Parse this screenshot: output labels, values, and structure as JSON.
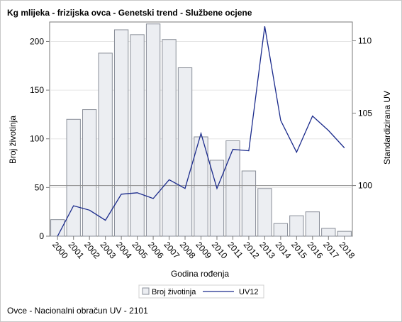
{
  "chart_data": {
    "type": "bar",
    "title": "Kg mlijeka - frizijska ovca - Genetski trend - Službene ocjene",
    "xlabel": "Godina rođenja",
    "ylabel": "Broj životinja",
    "y2label": "Standardizirana UV",
    "footnote": "Ovce - Nacionalni obračun UV - 2101",
    "categories": [
      "2000",
      "2001",
      "2002",
      "2003",
      "2004",
      "2005",
      "2006",
      "2007",
      "2008",
      "2009",
      "2010",
      "2011",
      "2012",
      "2013",
      "2014",
      "2015",
      "2016",
      "2017",
      "2018"
    ],
    "ylim": [
      0,
      220
    ],
    "y_ticks": [
      "0",
      "50",
      "100",
      "150",
      "200"
    ],
    "y_tick_values": [
      0,
      50,
      100,
      150,
      200
    ],
    "y2lim": [
      96.5,
      111.3
    ],
    "y2_ticks": [
      "100",
      "105",
      "110"
    ],
    "y2_tick_values": [
      100,
      105,
      110
    ],
    "reference_line_y2": 100,
    "legend_position": "bottom",
    "series": [
      {
        "name": "Broj životinja",
        "type": "bar",
        "axis": "left",
        "color": "#eceef2",
        "stroke": "#8a8f99",
        "values": [
          null,
          120,
          130,
          188,
          212,
          207,
          218,
          202,
          173,
          102,
          78,
          98,
          67,
          49,
          13,
          21,
          25,
          8,
          5
        ]
      },
      {
        "name": "UV12",
        "type": "line",
        "axis": "right",
        "color": "#1b2b8c",
        "values": [
          96.5,
          98.6,
          98.3,
          97.6,
          99.4,
          99.5,
          99.1,
          100.4,
          99.8,
          103.6,
          99.8,
          102.5,
          102.4,
          111.0,
          104.5,
          102.3,
          104.8,
          103.8,
          102.6
        ]
      }
    ],
    "first_bar_value": 17
  }
}
